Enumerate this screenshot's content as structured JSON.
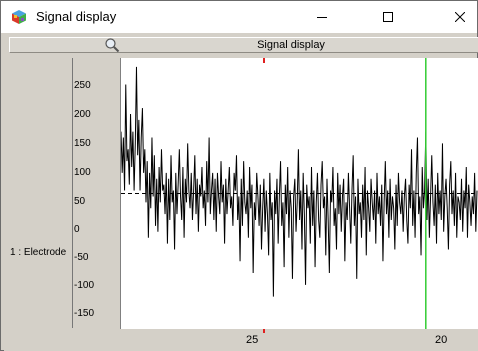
{
  "window": {
    "title": "Signal display",
    "icon": "colorful-cube-icon",
    "controls": [
      "minimize-icon",
      "maximize-icon",
      "close-icon"
    ]
  },
  "toolbar": {
    "zoom_icon": "magnifier-icon",
    "title": "Signal display"
  },
  "channel": {
    "label": "1 : Electrode"
  },
  "colors": {
    "signal": "#000000",
    "cursor": "#33cc33",
    "marker": "#e02020",
    "panel": "#d4d0c8"
  },
  "chart_data": {
    "type": "line",
    "title": "",
    "xlabel": "",
    "ylabel": "",
    "y_ticks": [
      "250",
      "200",
      "150",
      "100",
      "50",
      "0",
      "-50",
      "-100",
      "-150"
    ],
    "x_ticks": [
      "25",
      "20"
    ],
    "ylim": [
      -175,
      285
    ],
    "baseline": 55,
    "cursor_x": 20.4,
    "marker_x": 25,
    "series": [
      {
        "values": [
          160,
          90,
          150,
          60,
          240,
          110,
          130,
          70,
          190,
          100,
          160,
          60,
          140,
          270,
          120,
          180,
          60,
          150,
          200,
          90,
          130,
          40,
          110,
          -20,
          90,
          30,
          150,
          50,
          120,
          0,
          80,
          -10,
          100,
          40,
          130,
          60,
          70,
          20,
          90,
          -30,
          80,
          10,
          120,
          40,
          60,
          -40,
          90,
          20,
          70,
          130,
          50,
          10,
          100,
          -20,
          80,
          40,
          140,
          60,
          30,
          90,
          10,
          60,
          120,
          20,
          80,
          -10,
          70,
          50,
          100,
          30,
          60,
          0,
          110,
          40,
          150,
          20,
          60,
          90,
          10,
          80,
          -10,
          90,
          50,
          20,
          110,
          40,
          70,
          -30,
          80,
          20,
          60,
          100,
          30,
          50,
          0,
          90,
          60,
          120,
          10,
          50,
          -60,
          80,
          0,
          110,
          40,
          20,
          60,
          -20,
          100,
          30,
          70,
          -80,
          40,
          10,
          90,
          50,
          0,
          70,
          -40,
          30,
          80,
          -10,
          60,
          20,
          -50,
          90,
          10,
          40,
          -120,
          60,
          20,
          80,
          -30,
          50,
          110,
          0,
          40,
          -70,
          70,
          20,
          100,
          -20,
          60,
          30,
          -90,
          50,
          80,
          -10,
          40,
          130,
          10,
          60,
          -40,
          90,
          20,
          -100,
          70,
          30,
          50,
          -30,
          100,
          0,
          60,
          -70,
          40,
          90,
          10,
          -20,
          70,
          110,
          30,
          50,
          -50,
          80,
          10,
          -80,
          60,
          40,
          100,
          0,
          30,
          -40,
          90,
          20,
          70,
          -10,
          50,
          80,
          -60,
          40,
          10,
          90,
          30,
          -30,
          60,
          120,
          0,
          50,
          -90,
          80,
          20,
          40,
          -20,
          70,
          10,
          100,
          -50,
          60,
          30,
          -10,
          80,
          40,
          10,
          60,
          -30,
          90,
          20,
          50,
          0,
          70,
          -60,
          40,
          110,
          20,
          60,
          -20,
          80,
          10,
          50,
          30,
          -40,
          70,
          0,
          90,
          40,
          20,
          60,
          -10,
          50,
          80,
          10,
          -30,
          70,
          30,
          130,
          0,
          60,
          -20,
          90,
          150,
          20,
          50,
          -50,
          100,
          30,
          60,
          160,
          10,
          80,
          -20,
          50,
          120,
          40,
          0,
          70,
          -30,
          90,
          20,
          60,
          10,
          140,
          -10,
          50,
          80,
          30,
          -40,
          70,
          110,
          20,
          60,
          0,
          90,
          -20,
          50,
          40,
          10,
          80,
          -10,
          60,
          30,
          100,
          -20,
          70,
          40,
          0,
          50,
          20,
          90,
          -10,
          60
        ]
      }
    ]
  }
}
